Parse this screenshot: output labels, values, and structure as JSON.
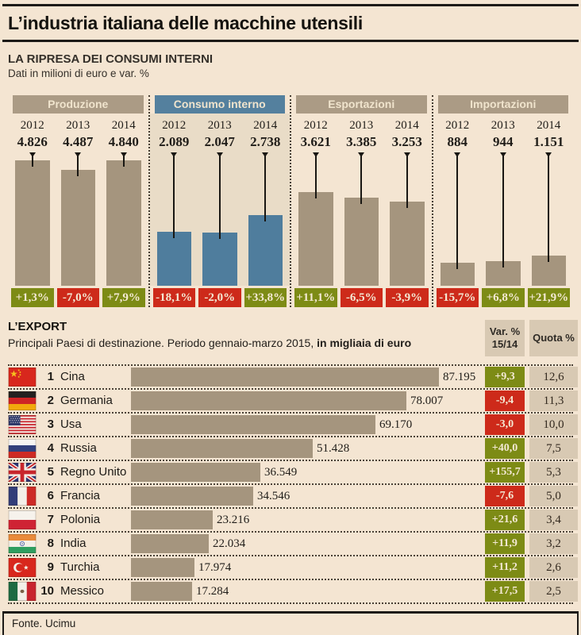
{
  "title": "L’industria italiana delle macchine utensili",
  "footer": {
    "source": "Fonte. Ucimu"
  },
  "colors": {
    "background": "#f4e5d2",
    "highlight_panel": "#e9dcc7",
    "bar_taupe": "#a5957e",
    "bar_blue": "#4f7d9d",
    "header_taupe": "#ab9b85",
    "header_blue": "#54809e",
    "positive_green": "#7d8b15",
    "negative_red": "#cd2a1a",
    "neutral_badge": "#d8c9b3",
    "text": "#221f1c"
  },
  "chart_data": [
    {
      "type": "bar",
      "title": "LA RIPRESA DEI CONSUMI INTERNI",
      "subtitle": "Dati in milioni di euro e var. %",
      "categories": [
        "2012",
        "2013",
        "2014"
      ],
      "ylabel": "milioni di euro",
      "ylim": [
        0,
        4840
      ],
      "groups": [
        {
          "name": "Produzione",
          "highlight": false,
          "values": [
            4826,
            4487,
            4840
          ],
          "value_labels": [
            "4.826",
            "4.487",
            "4.840"
          ],
          "changes": [
            "+1,3%",
            "-7,0%",
            "+7,9%"
          ],
          "change_colors": [
            "green",
            "red",
            "green"
          ]
        },
        {
          "name": "Consumo interno",
          "highlight": true,
          "values": [
            2089,
            2047,
            2738
          ],
          "value_labels": [
            "2.089",
            "2.047",
            "2.738"
          ],
          "changes": [
            "-18,1%",
            "-2,0%",
            "+33,8%"
          ],
          "change_colors": [
            "red",
            "red",
            "green"
          ]
        },
        {
          "name": "Esportazioni",
          "highlight": false,
          "values": [
            3621,
            3385,
            3253
          ],
          "value_labels": [
            "3.621",
            "3.385",
            "3.253"
          ],
          "changes": [
            "+11,1%",
            "-6,5%",
            "-3,9%"
          ],
          "change_colors": [
            "green",
            "red",
            "red"
          ]
        },
        {
          "name": "Importazioni",
          "highlight": false,
          "values": [
            884,
            944,
            1151
          ],
          "value_labels": [
            "884",
            "944",
            "1.151"
          ],
          "changes": [
            "-15,7%",
            "+6,8%",
            "+21,9%"
          ],
          "change_colors": [
            "red",
            "green",
            "green"
          ]
        }
      ]
    },
    {
      "type": "bar",
      "orientation": "horizontal",
      "title": "L’EXPORT",
      "subtitle": "Principali Paesi di destinazione. Periodo gennaio-marzo 2015, ",
      "subtitle_bold": "in migliaia di euro",
      "columns": {
        "var_line1": "Var. %",
        "var_line2": "15/14",
        "quota": "Quota %"
      },
      "xlim": [
        0,
        87195
      ],
      "rows": [
        {
          "rank": "1",
          "country": "Cina",
          "flag": "cn",
          "value": 87195,
          "value_label": "87.195",
          "var": "+9,3",
          "var_sign": "green",
          "quota": "12,6"
        },
        {
          "rank": "2",
          "country": "Germania",
          "flag": "de",
          "value": 78007,
          "value_label": "78.007",
          "var": "-9,4",
          "var_sign": "red",
          "quota": "11,3"
        },
        {
          "rank": "3",
          "country": "Usa",
          "flag": "us",
          "value": 69170,
          "value_label": "69.170",
          "var": "-3,0",
          "var_sign": "red",
          "quota": "10,0"
        },
        {
          "rank": "4",
          "country": "Russia",
          "flag": "ru",
          "value": 51428,
          "value_label": "51.428",
          "var": "+40,0",
          "var_sign": "green",
          "quota": "7,5"
        },
        {
          "rank": "5",
          "country": "Regno Unito",
          "flag": "gb",
          "value": 36549,
          "value_label": "36.549",
          "var": "+155,7",
          "var_sign": "green",
          "quota": "5,3"
        },
        {
          "rank": "6",
          "country": "Francia",
          "flag": "fr",
          "value": 34546,
          "value_label": "34.546",
          "var": "-7,6",
          "var_sign": "red",
          "quota": "5,0"
        },
        {
          "rank": "7",
          "country": "Polonia",
          "flag": "pl",
          "value": 23216,
          "value_label": "23.216",
          "var": "+21,6",
          "var_sign": "green",
          "quota": "3,4"
        },
        {
          "rank": "8",
          "country": "India",
          "flag": "in",
          "value": 22034,
          "value_label": "22.034",
          "var": "+11,9",
          "var_sign": "green",
          "quota": "3,2"
        },
        {
          "rank": "9",
          "country": "Turchia",
          "flag": "tr",
          "value": 17974,
          "value_label": "17.974",
          "var": "+11,2",
          "var_sign": "green",
          "quota": "2,6"
        },
        {
          "rank": "10",
          "country": "Messico",
          "flag": "mx",
          "value": 17284,
          "value_label": "17.284",
          "var": "+17,5",
          "var_sign": "green",
          "quota": "2,5"
        }
      ]
    }
  ]
}
